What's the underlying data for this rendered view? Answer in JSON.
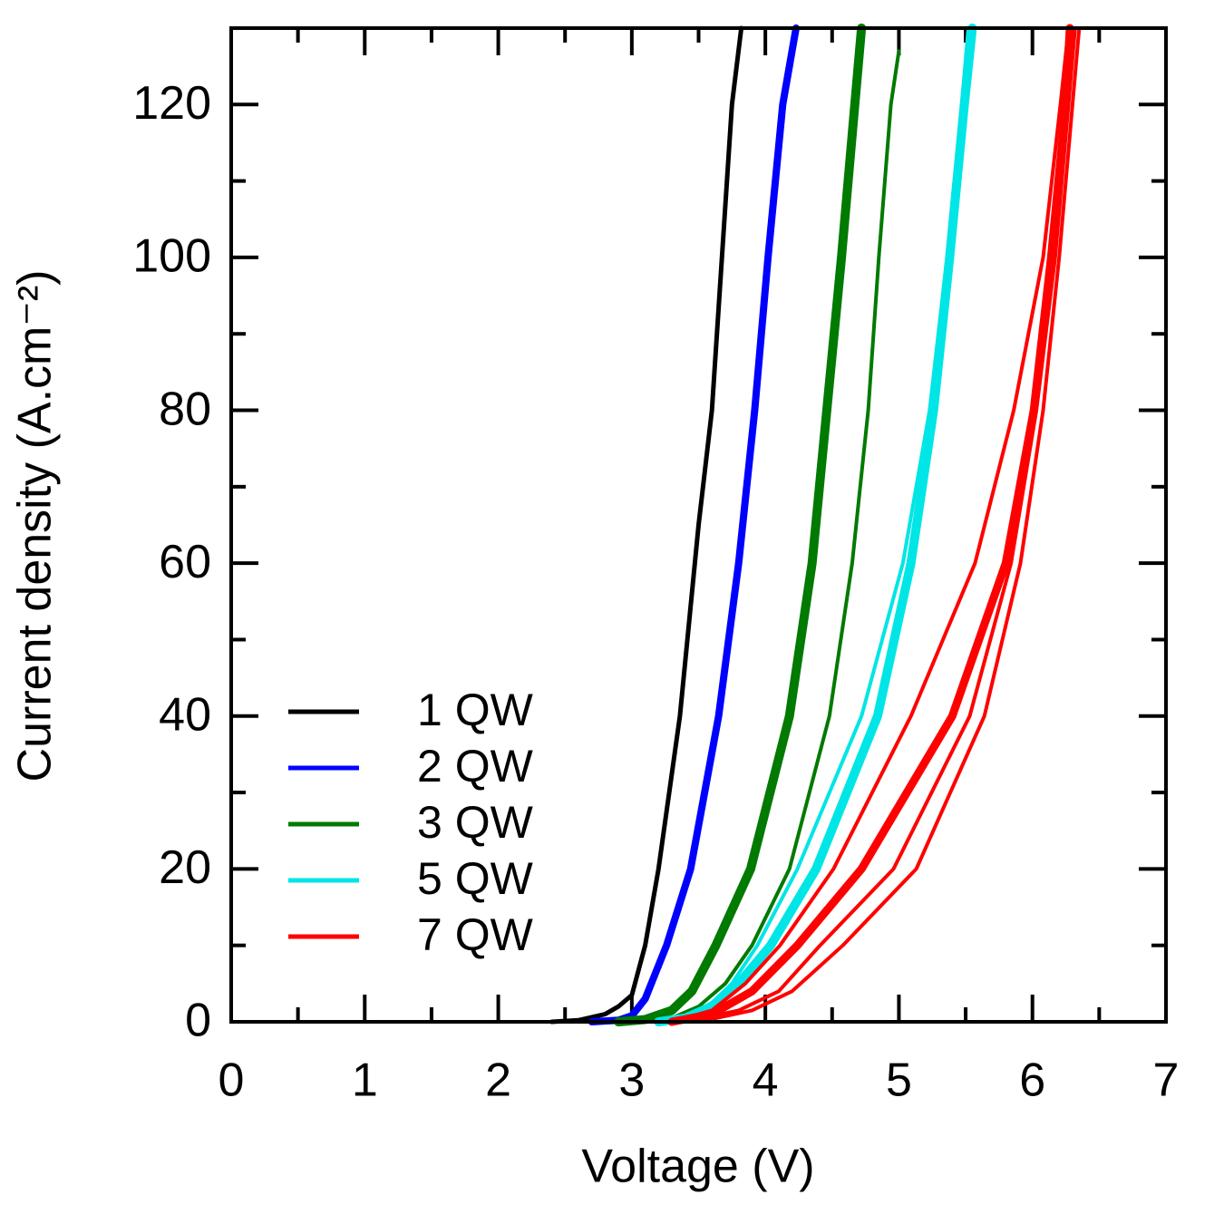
{
  "chart_data": {
    "type": "line",
    "x_label": "Voltage (V)",
    "y_label": "Current density (A.cm⁻²)",
    "xlim": [
      0,
      7
    ],
    "xticks": [
      0,
      1,
      2,
      3,
      4,
      5,
      6,
      7
    ],
    "ylim": [
      0,
      130
    ],
    "yticks": [
      0,
      20,
      40,
      60,
      80,
      100,
      120
    ],
    "grid": false,
    "legend": "lower left",
    "series": [
      {
        "name": "1 QW",
        "color": "#000000",
        "line_width": 5,
        "x": [
          2.4,
          2.6,
          2.8,
          2.9,
          3.0,
          3.1,
          3.2,
          3.36,
          3.5,
          3.6,
          3.75,
          3.82
        ],
        "values": [
          0,
          0.2,
          1,
          2,
          3.5,
          10,
          20,
          40,
          65,
          80,
          120,
          130
        ]
      },
      {
        "name": "2 QW",
        "color": "#0000ff",
        "line_width": 8,
        "x": [
          2.7,
          2.9,
          3.0,
          3.1,
          3.26,
          3.44,
          3.65,
          3.8,
          3.92,
          4.02,
          4.13,
          4.23
        ],
        "values": [
          0,
          0.2,
          0.8,
          3,
          10,
          20,
          40,
          60,
          80,
          100,
          120,
          130
        ]
      },
      {
        "name": "3 QW",
        "color": "#007a00",
        "line_width": 10,
        "x": [
          2.9,
          3.1,
          3.3,
          3.45,
          3.63,
          3.89,
          4.18,
          4.35,
          4.46,
          4.57,
          4.67,
          4.72
        ],
        "values": [
          0,
          0.3,
          1.5,
          4,
          10,
          20,
          40,
          60,
          80,
          100,
          120,
          130
        ]
      },
      {
        "color": "#007a00",
        "line_width": 4,
        "x": [
          3.1,
          3.3,
          3.5,
          3.7,
          3.9,
          4.18,
          4.48,
          4.65,
          4.77,
          4.85,
          4.94,
          5.0
        ],
        "values": [
          0,
          0.5,
          2,
          5,
          10,
          20,
          40,
          60,
          80,
          100,
          120,
          127
        ]
      },
      {
        "name": "5 QW",
        "color": "#00e5e5",
        "line_width": 10,
        "x": [
          3.2,
          3.4,
          3.6,
          3.8,
          4.04,
          4.38,
          4.84,
          5.09,
          5.26,
          5.38,
          5.49,
          5.55
        ],
        "values": [
          0,
          0.5,
          2,
          5,
          10,
          20,
          40,
          60,
          80,
          100,
          120,
          130
        ]
      },
      {
        "color": "#00e5e5",
        "line_width": 4,
        "x": [
          3.2,
          3.4,
          3.6,
          3.75,
          3.94,
          4.24,
          4.72,
          5.03,
          5.23,
          5.36,
          5.47,
          5.52
        ],
        "values": [
          0,
          0.6,
          2.5,
          5,
          10,
          20,
          40,
          60,
          80,
          100,
          120,
          130
        ]
      },
      {
        "name": "7 QW",
        "color": "#ff0000",
        "line_width": 9,
        "x": [
          3.3,
          3.6,
          3.9,
          4.24,
          4.72,
          5.4,
          5.8,
          6.01,
          6.14,
          6.25,
          6.28
        ],
        "values": [
          0,
          1,
          4,
          10,
          20,
          40,
          60,
          80,
          100,
          120,
          130
        ]
      },
      {
        "color": "#ff0000",
        "line_width": 4,
        "x": [
          3.3,
          3.6,
          3.85,
          4.11,
          4.51,
          5.09,
          5.57,
          5.86,
          6.08,
          6.21,
          6.27
        ],
        "values": [
          0,
          1.5,
          5,
          10,
          20,
          40,
          60,
          80,
          100,
          120,
          130
        ]
      },
      {
        "color": "#ff0000",
        "line_width": 4,
        "x": [
          3.4,
          3.8,
          4.1,
          4.41,
          4.96,
          5.53,
          5.84,
          6.03,
          6.17,
          6.27,
          6.32
        ],
        "values": [
          0,
          1.5,
          4,
          10,
          20,
          40,
          60,
          80,
          100,
          120,
          130
        ]
      },
      {
        "color": "#ff0000",
        "line_width": 4,
        "x": [
          3.5,
          3.9,
          4.2,
          4.58,
          5.13,
          5.64,
          5.91,
          6.08,
          6.2,
          6.3,
          6.35
        ],
        "values": [
          0,
          1.5,
          4,
          10,
          20,
          40,
          60,
          80,
          100,
          120,
          130
        ]
      }
    ]
  }
}
